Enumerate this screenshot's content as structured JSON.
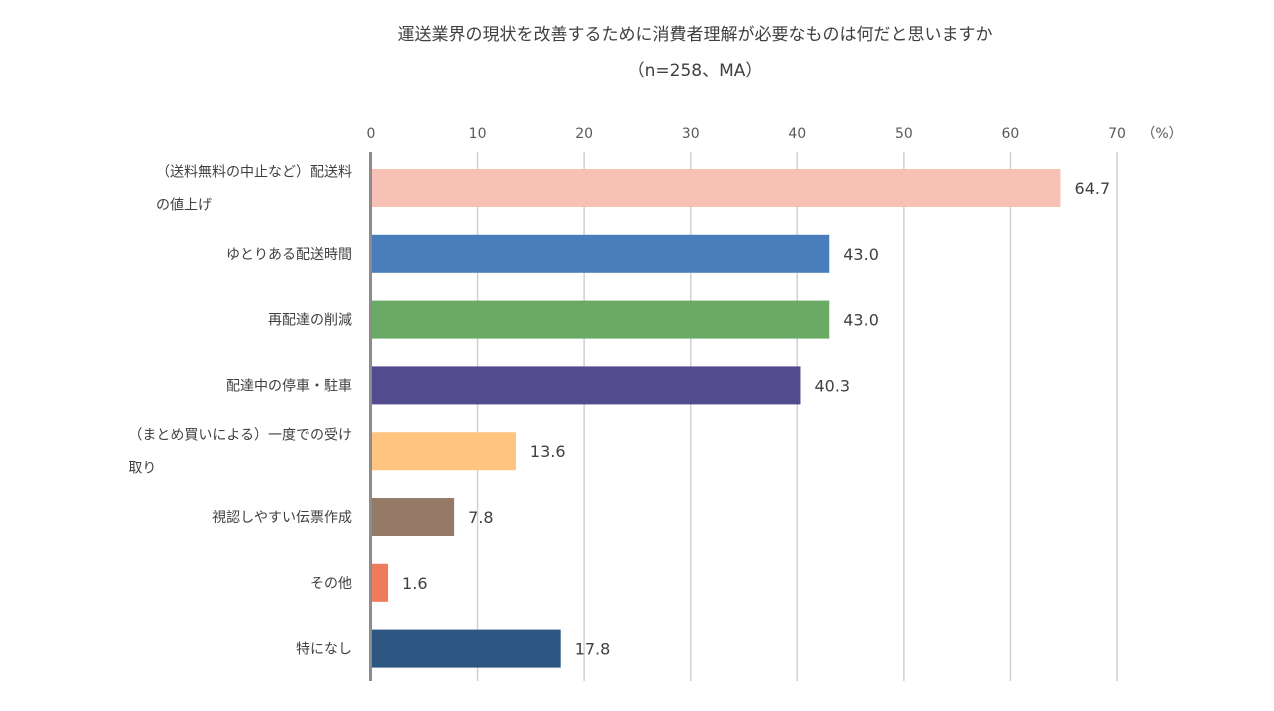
{
  "chart_data": {
    "type": "bar",
    "orientation": "horizontal",
    "title": "運送業界の現状を改善するために消費者理解が必要なものは何だと思いますか",
    "subtitle": "（n=258、MA）",
    "unit_label": "（%）",
    "xlim": [
      0,
      70
    ],
    "ticks": [
      "0",
      "10",
      "20",
      "30",
      "40",
      "50",
      "60",
      "70"
    ],
    "grid": true,
    "categories": [
      [
        "（送料無料の中止など）配送料",
        "の値上げ"
      ],
      [
        "ゆとりある配送時間"
      ],
      [
        "再配達の削減"
      ],
      [
        "配達中の停車・駐車"
      ],
      [
        "（まとめ買いによる）一度での受け",
        "取り"
      ],
      [
        "視認しやすい伝票作成"
      ],
      [
        "その他"
      ],
      [
        "特になし"
      ]
    ],
    "values": [
      64.7,
      43.0,
      43.0,
      40.3,
      13.6,
      7.8,
      1.6,
      17.8
    ],
    "value_labels": [
      "64.7",
      "43.0",
      "43.0",
      "40.3",
      "13.6",
      "7.8",
      "1.6",
      "17.8"
    ],
    "colors": [
      "#F7C1B5",
      "#4A7EBB",
      "#6AAA64",
      "#524C8E",
      "#FFC47F",
      "#957B67",
      "#EE7B5A",
      "#2E5683"
    ]
  }
}
